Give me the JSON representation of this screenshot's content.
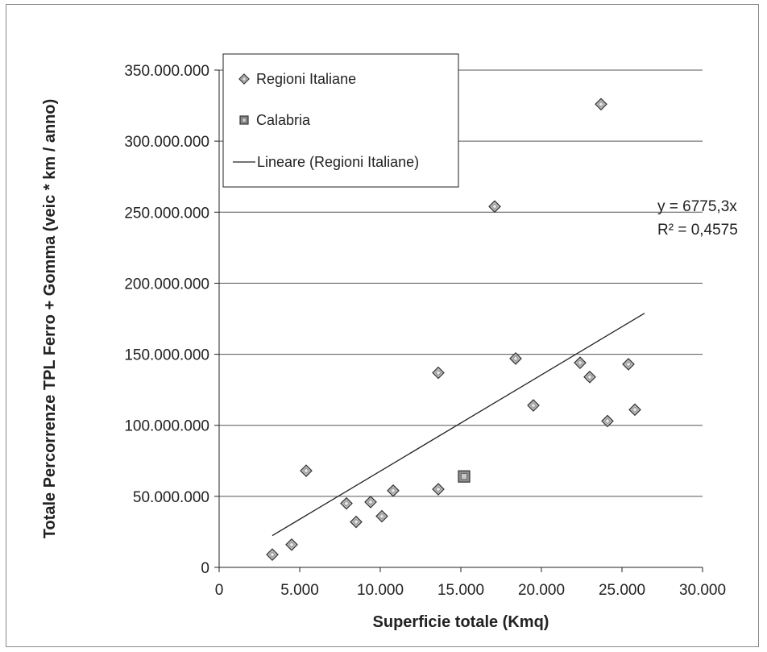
{
  "chart_data": {
    "type": "scatter",
    "xlabel": "Superficie totale (Kmq)",
    "ylabel": "Totale Percorrenze TPL Ferro + Gomma  (veic * km / anno)",
    "xlim": [
      0,
      30000
    ],
    "ylim": [
      0,
      350000000
    ],
    "x_ticks": [
      "0",
      "5.000",
      "10.000",
      "15.000",
      "20.000",
      "25.000",
      "30.000"
    ],
    "y_ticks": [
      "0",
      "50.000.000",
      "100.000.000",
      "150.000.000",
      "200.000.000",
      "250.000.000",
      "300.000.000",
      "350.000.000"
    ],
    "grid": "horizontal",
    "legend_position": "top-left",
    "series": [
      {
        "name": "Regioni Italiane",
        "marker": "diamond",
        "points": [
          {
            "x": 3300,
            "y": 9000000
          },
          {
            "x": 4500,
            "y": 16000000
          },
          {
            "x": 5400,
            "y": 68000000
          },
          {
            "x": 7900,
            "y": 45000000
          },
          {
            "x": 8500,
            "y": 32000000
          },
          {
            "x": 9400,
            "y": 46000000
          },
          {
            "x": 10100,
            "y": 36000000
          },
          {
            "x": 10800,
            "y": 54000000
          },
          {
            "x": 13600,
            "y": 55000000
          },
          {
            "x": 13600,
            "y": 137000000
          },
          {
            "x": 17100,
            "y": 254000000
          },
          {
            "x": 18400,
            "y": 147000000
          },
          {
            "x": 19500,
            "y": 114000000
          },
          {
            "x": 22400,
            "y": 144000000
          },
          {
            "x": 23000,
            "y": 134000000
          },
          {
            "x": 23700,
            "y": 326000000
          },
          {
            "x": 24100,
            "y": 103000000
          },
          {
            "x": 25400,
            "y": 143000000
          },
          {
            "x": 25800,
            "y": 111000000
          }
        ]
      },
      {
        "name": "Calabria",
        "marker": "square",
        "points": [
          {
            "x": 15200,
            "y": 64000000
          }
        ]
      },
      {
        "name": "Lineare (Regioni Italiane)",
        "marker": "line",
        "slope": 6775.3,
        "x_range": [
          3300,
          26400
        ]
      }
    ],
    "annotations": [
      "y = 6775,3x",
      "R² = 0,4575"
    ],
    "colors": {
      "marker_fill": "#b8b8b8",
      "marker_stroke": "#333333",
      "line": "#222222",
      "grid": "#555555"
    }
  }
}
